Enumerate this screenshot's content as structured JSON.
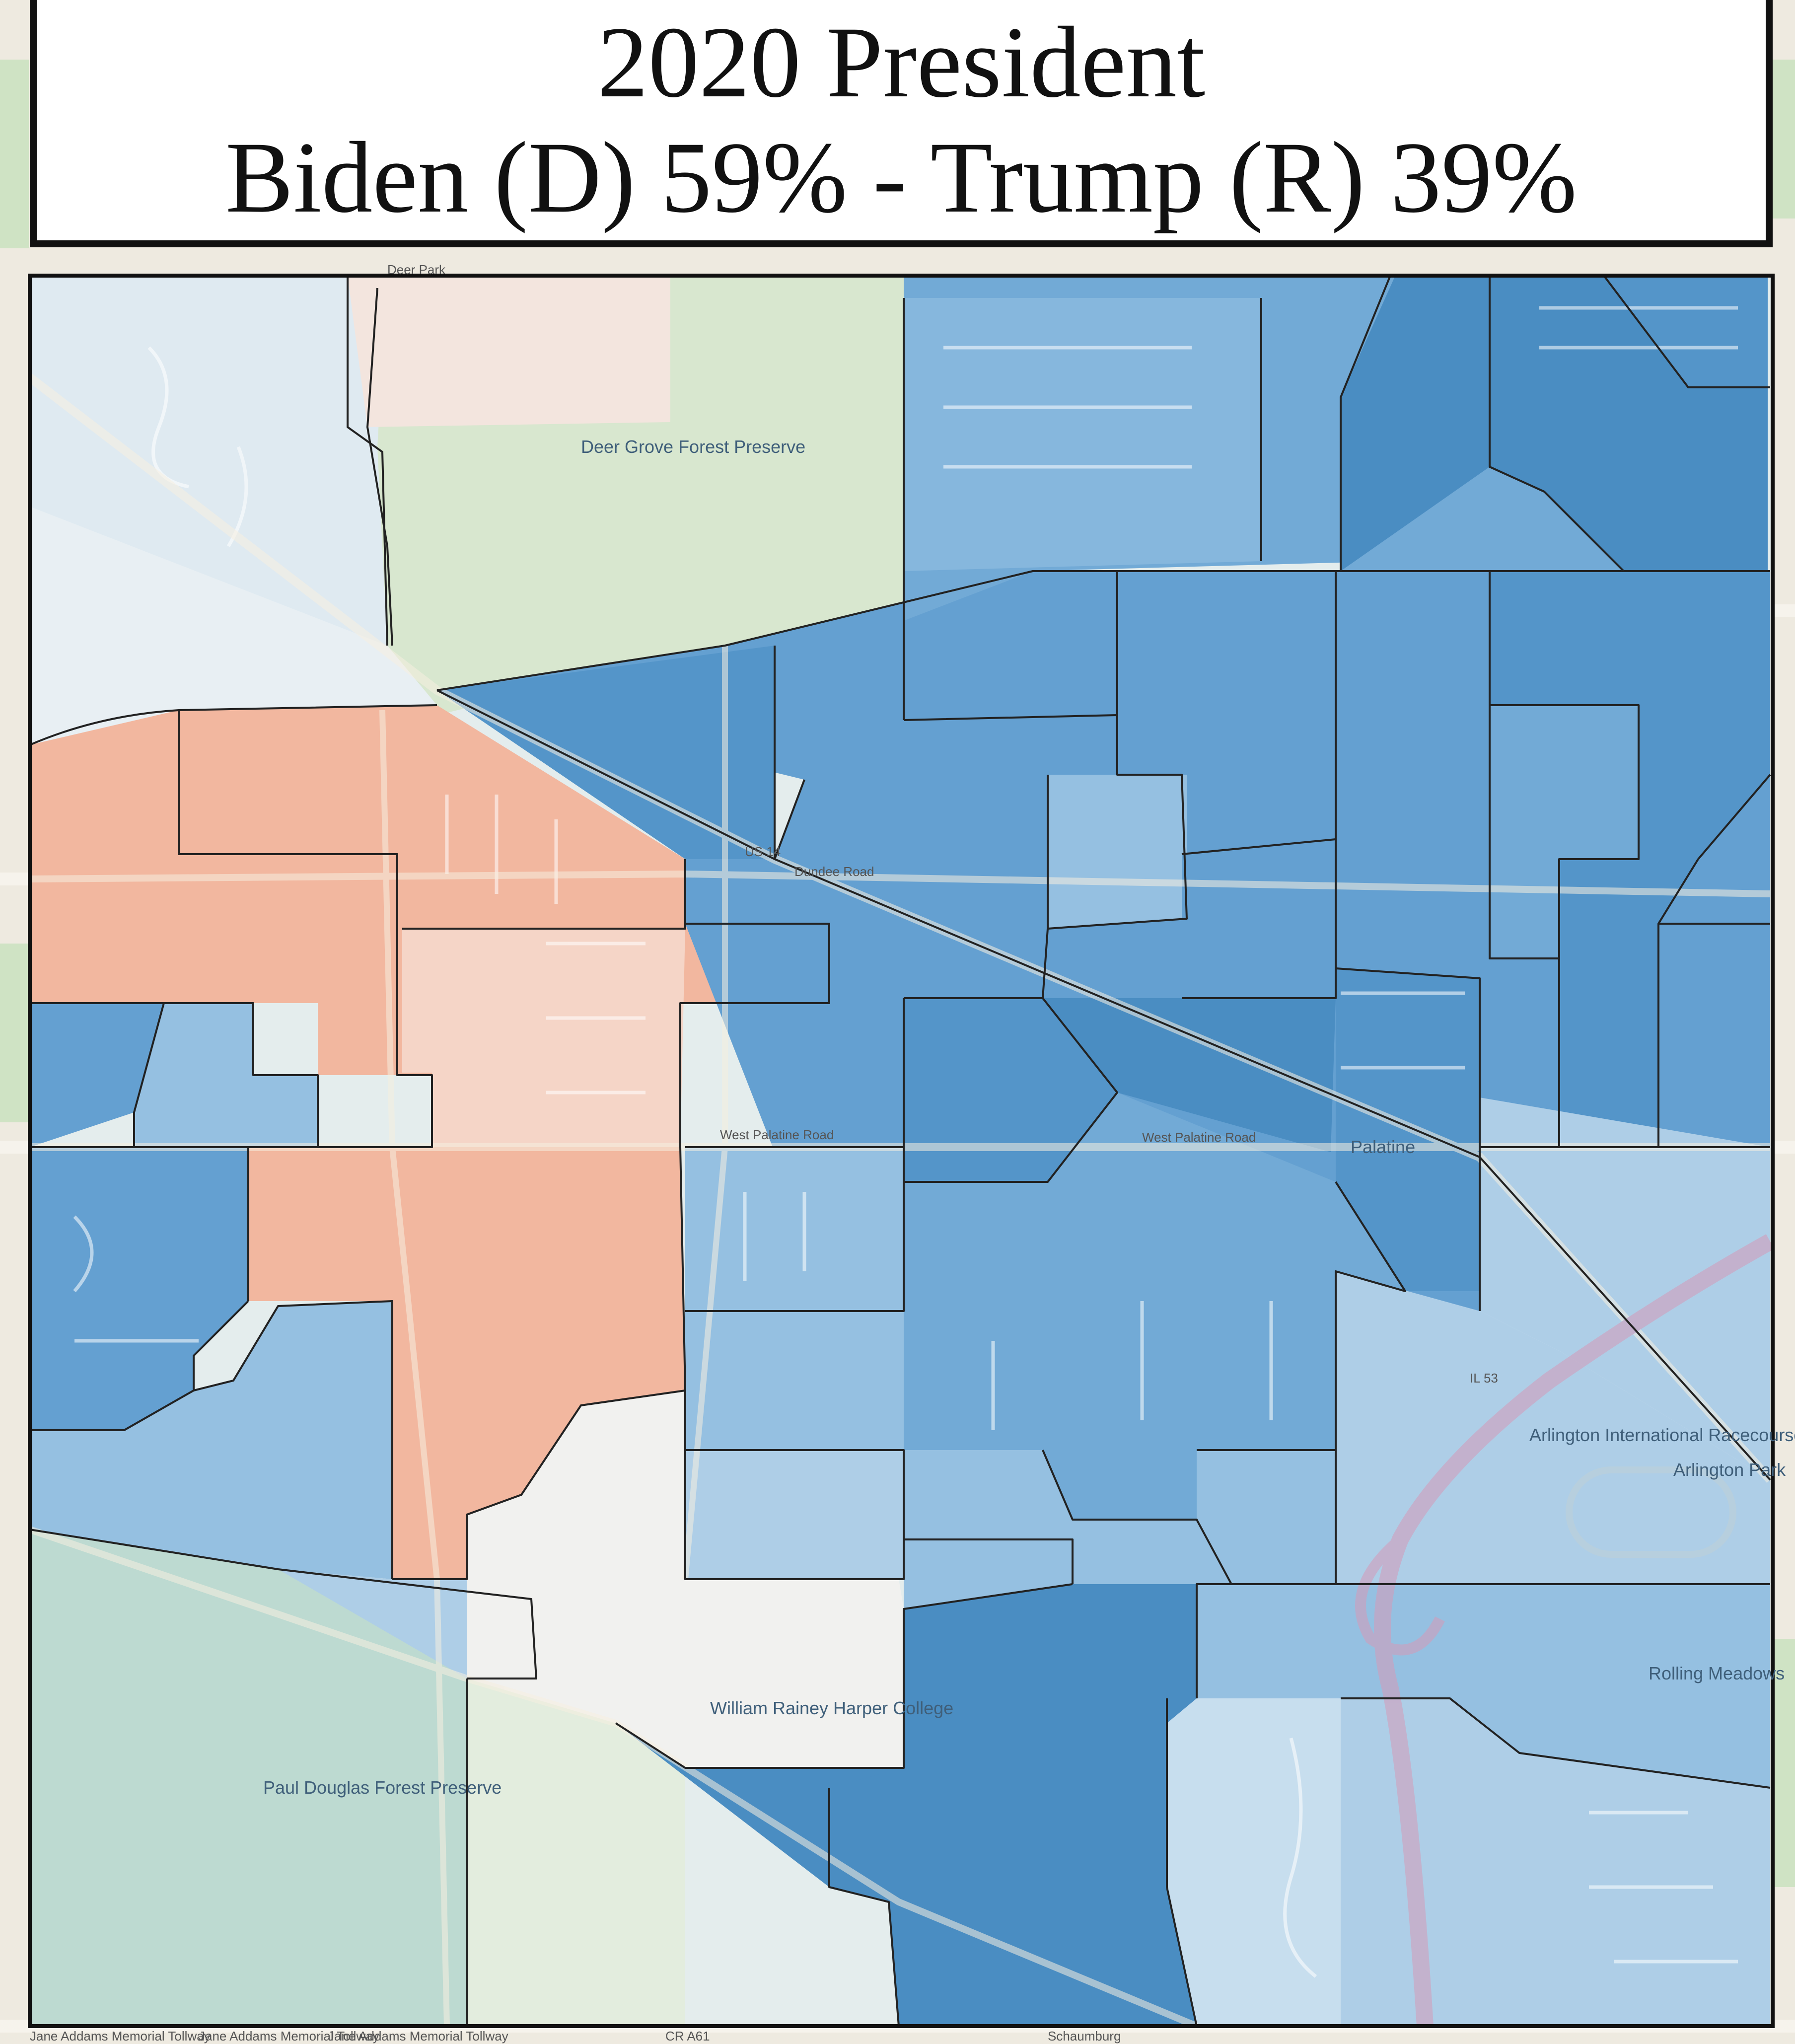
{
  "title": {
    "line1": "2020 President",
    "line2": "Biden (D) 59% - Trump (R) 39%"
  },
  "colors": {
    "base_map": "#eeeae0",
    "park": "#cfe3c4",
    "dem_strong": "#3f86bf",
    "dem_medium": "#5b9bcf",
    "dem_light": "#8fbde0",
    "dem_pale": "#c4dced",
    "dem_faint": "#dbe8f1",
    "rep_medium": "#f2b39a",
    "rep_light": "#f5d3c4",
    "rep_faint": "#f3e4dc",
    "border": "#222222"
  },
  "road_labels": {
    "bottom_1": "Jane Addams Memorial Tollway",
    "bottom_2": "Jane Addams Memorial Tollway",
    "bottom_3": "Jane Addams Memorial Tollway",
    "bottom_4": "Schaumburg",
    "left_1": "Dundee Road",
    "left_2": "West Palatine Road",
    "top_1": "Deer Park",
    "route_1": "US 14",
    "route_2": "West Palatine Road",
    "route_3": "CR A61",
    "route_4": "IL 53"
  },
  "place_labels": {
    "arlington_park": "Arlington International Racecourse",
    "rolling_meadows": "Rolling Meadows",
    "harper_college": "William Rainey Harper College",
    "paul_douglas": "Paul Douglas Forest Preserve",
    "deer_grove": "Deer Grove Forest Preserve",
    "palatine": "Palatine",
    "arlington_park_2": "Arlington Park"
  }
}
